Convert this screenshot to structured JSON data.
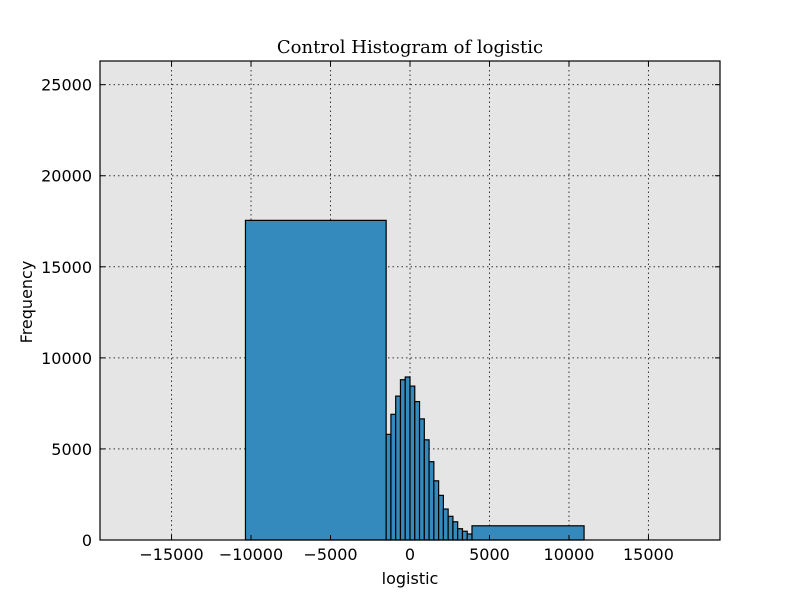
{
  "chart_data": {
    "type": "bar",
    "title": "Control Histogram of logistic",
    "xlabel": "logistic",
    "ylabel": "Frequency",
    "xlim": [
      -19500,
      19500
    ],
    "ylim": [
      0,
      26300
    ],
    "xticks": [
      -15000,
      -10000,
      -5000,
      0,
      5000,
      10000,
      15000
    ],
    "xtick_labels": [
      "−15000",
      "−10000",
      "−5000",
      "0",
      "5000",
      "10000",
      "15000"
    ],
    "yticks": [
      0,
      5000,
      10000,
      15000,
      20000,
      25000
    ],
    "ytick_labels": [
      "0",
      "5000",
      "10000",
      "15000",
      "20000",
      "25000"
    ],
    "grid": true,
    "colors": {
      "bar": "#348abd",
      "axes_background": "#e5e5e5",
      "edge": "#000000"
    },
    "bins": [
      {
        "x0": -10350,
        "x1": -1500,
        "count": 17550
      },
      {
        "x0": -1500,
        "x1": -1200,
        "count": 5800
      },
      {
        "x0": -1200,
        "x1": -900,
        "count": 6900
      },
      {
        "x0": -900,
        "x1": -600,
        "count": 7900
      },
      {
        "x0": -600,
        "x1": -300,
        "count": 8800
      },
      {
        "x0": -300,
        "x1": 0,
        "count": 8950
      },
      {
        "x0": 0,
        "x1": 300,
        "count": 8450
      },
      {
        "x0": 300,
        "x1": 600,
        "count": 7600
      },
      {
        "x0": 600,
        "x1": 900,
        "count": 6650
      },
      {
        "x0": 900,
        "x1": 1200,
        "count": 5500
      },
      {
        "x0": 1200,
        "x1": 1500,
        "count": 4300
      },
      {
        "x0": 1500,
        "x1": 1800,
        "count": 3250
      },
      {
        "x0": 1800,
        "x1": 2100,
        "count": 2450
      },
      {
        "x0": 2100,
        "x1": 2400,
        "count": 1700
      },
      {
        "x0": 2400,
        "x1": 2700,
        "count": 1300
      },
      {
        "x0": 2700,
        "x1": 3000,
        "count": 1000
      },
      {
        "x0": 3000,
        "x1": 3300,
        "count": 620
      },
      {
        "x0": 3300,
        "x1": 3600,
        "count": 480
      },
      {
        "x0": 3600,
        "x1": 3900,
        "count": 330
      },
      {
        "x0": 3900,
        "x1": 10950,
        "count": 780
      }
    ]
  }
}
